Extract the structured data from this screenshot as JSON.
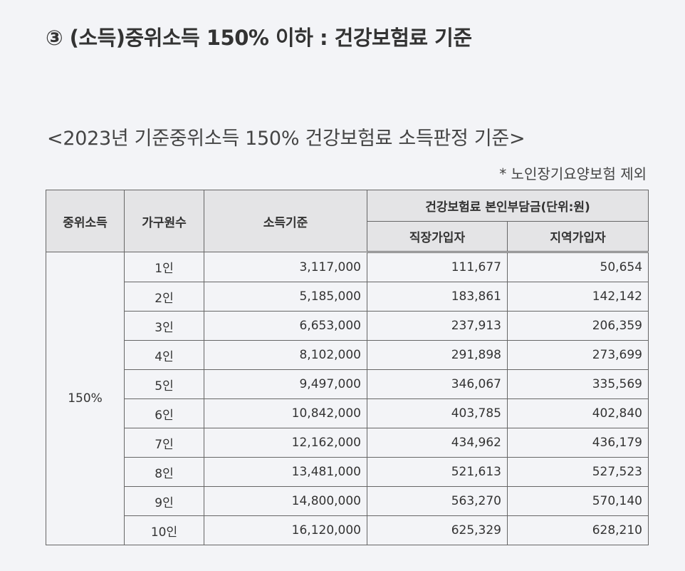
{
  "heading": "③ (소득)중위소득 150% 이하 : 건강보험료 기준",
  "table_title": "<2023년 기준중위소득 150% 건강보험료 소득판정 기준>",
  "table_note": "* 노인장기요양보험 제외",
  "table": {
    "headers": {
      "median_income": "중위소득",
      "household_size": "가구원수",
      "income_standard": "소득기준",
      "premium_group": "건강보험료 본인부담금(단위:원)",
      "employee": "직장가입자",
      "regional": "지역가입자"
    },
    "median_income_value": "150%",
    "rows": [
      {
        "household": "1인",
        "income": "3,117,000",
        "employee": "111,677",
        "regional": "50,654"
      },
      {
        "household": "2인",
        "income": "5,185,000",
        "employee": "183,861",
        "regional": "142,142"
      },
      {
        "household": "3인",
        "income": "6,653,000",
        "employee": "237,913",
        "regional": "206,359"
      },
      {
        "household": "4인",
        "income": "8,102,000",
        "employee": "291,898",
        "regional": "273,699"
      },
      {
        "household": "5인",
        "income": "9,497,000",
        "employee": "346,067",
        "regional": "335,569"
      },
      {
        "household": "6인",
        "income": "10,842,000",
        "employee": "403,785",
        "regional": "402,840"
      },
      {
        "household": "7인",
        "income": "12,162,000",
        "employee": "434,962",
        "regional": "436,179"
      },
      {
        "household": "8인",
        "income": "13,481,000",
        "employee": "521,613",
        "regional": "527,523"
      },
      {
        "household": "9인",
        "income": "14,800,000",
        "employee": "563,270",
        "regional": "570,140"
      },
      {
        "household": "10인",
        "income": "16,120,000",
        "employee": "625,329",
        "regional": "628,210"
      }
    ]
  }
}
